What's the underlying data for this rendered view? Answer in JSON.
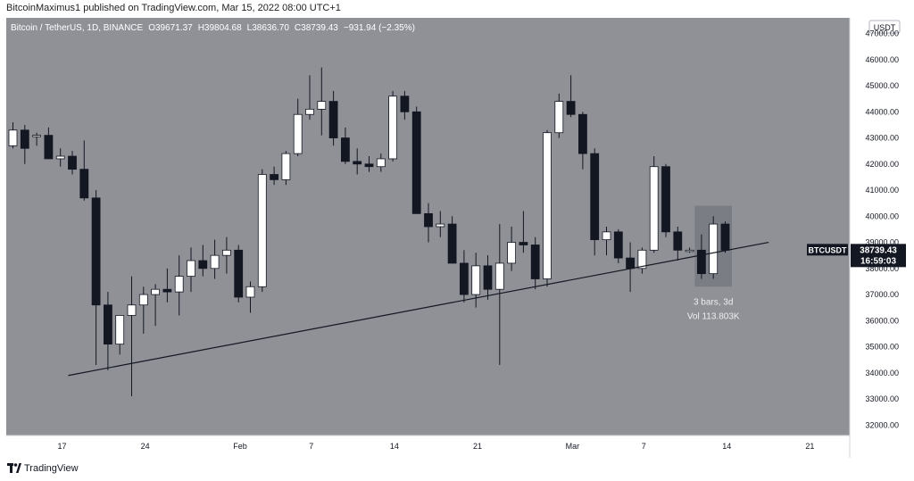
{
  "header": {
    "published": "BitcoinMaximus1 published on TradingView.com, Mar 15, 2022 08:00 UTC+1"
  },
  "footer": {
    "brand": "TradingView"
  },
  "colors": {
    "background": "#8f9197",
    "up_candle": "#ffffff",
    "down_candle": "#131722",
    "axis_panel": "#ffffff",
    "trendline": "#131722"
  },
  "chart_data": {
    "type": "candlestick",
    "symbol_title": "Bitcoin / TetherUS, 1D, BINANCE",
    "ohlc_readout": {
      "open": "O39671.37",
      "high": "H39804.68",
      "low": "L38636.70",
      "close": "C38739.43",
      "change": "−931.94 (−2.35%)"
    },
    "currency_label": "USDT",
    "price_label": {
      "symbol": "BTCUSDT",
      "price": "38739.43",
      "countdown": "16:59:03"
    },
    "measure_annotation": {
      "bars": "3 bars, 3d",
      "volume": "Vol 113.803K"
    },
    "y_ticks": [
      "47000.00",
      "46000.00",
      "45000.00",
      "44000.00",
      "43000.00",
      "42000.00",
      "41000.00",
      "40000.00",
      "39000.00",
      "38000.00",
      "37000.00",
      "36000.00",
      "35000.00",
      "34000.00",
      "33000.00",
      "32000.00"
    ],
    "x_ticks": [
      {
        "label": "17",
        "bar": 0
      },
      {
        "label": "24",
        "bar": 7
      },
      {
        "label": "Feb",
        "bar": 15
      },
      {
        "label": "7",
        "bar": 21
      },
      {
        "label": "14",
        "bar": 28
      },
      {
        "label": "21",
        "bar": 35
      },
      {
        "label": "Mar",
        "bar": 43
      },
      {
        "label": "7",
        "bar": 49
      },
      {
        "label": "14",
        "bar": 56
      },
      {
        "label": "21",
        "bar": 63
      }
    ],
    "ylim": [
      31600,
      47600
    ],
    "candles": [
      [
        42700,
        43600,
        42600,
        43300
      ],
      [
        43300,
        43500,
        42000,
        42600
      ],
      [
        43100,
        43200,
        42700,
        43100
      ],
      [
        43100,
        43400,
        42200,
        42200
      ],
      [
        42200,
        42600,
        41900,
        42300
      ],
      [
        42300,
        42500,
        41600,
        41800
      ],
      [
        41800,
        42900,
        40600,
        40700
      ],
      [
        40700,
        41000,
        34300,
        36600
      ],
      [
        36600,
        37100,
        34100,
        35100
      ],
      [
        35100,
        36200,
        34700,
        36200
      ],
      [
        36200,
        37700,
        33100,
        36600
      ],
      [
        36600,
        37300,
        35500,
        37000
      ],
      [
        37000,
        37400,
        35800,
        37200
      ],
      [
        37200,
        38000,
        36700,
        37100
      ],
      [
        37100,
        38500,
        36200,
        37700
      ],
      [
        37700,
        38800,
        37100,
        38300
      ],
      [
        38300,
        38900,
        37700,
        38000
      ],
      [
        38000,
        39100,
        37600,
        38500
      ],
      [
        38500,
        39200,
        37800,
        38700
      ],
      [
        38700,
        38900,
        36700,
        36900
      ],
      [
        36900,
        37500,
        36300,
        37300
      ],
      [
        37300,
        41800,
        37100,
        41600
      ],
      [
        41600,
        41900,
        41200,
        41400
      ],
      [
        41400,
        42500,
        41200,
        42400
      ],
      [
        42400,
        44500,
        42300,
        43900
      ],
      [
        43900,
        45400,
        43700,
        44100
      ],
      [
        44100,
        45700,
        43100,
        44400
      ],
      [
        44400,
        44800,
        42700,
        43000
      ],
      [
        43000,
        43400,
        42000,
        42100
      ],
      [
        42100,
        42600,
        41600,
        42000
      ],
      [
        42000,
        42300,
        41700,
        41900
      ],
      [
        41900,
        42400,
        41700,
        42200
      ],
      [
        42200,
        44800,
        42100,
        44600
      ],
      [
        44600,
        44800,
        43700,
        44000
      ],
      [
        44000,
        44200,
        40100,
        40100
      ],
      [
        40100,
        40500,
        39000,
        39600
      ],
      [
        39600,
        40200,
        39200,
        39700
      ],
      [
        39700,
        40000,
        38200,
        38200
      ],
      [
        38200,
        38700,
        36700,
        37000
      ],
      [
        37000,
        38600,
        36500,
        38100
      ],
      [
        38100,
        38500,
        36800,
        37200
      ],
      [
        37200,
        39700,
        34300,
        38200
      ],
      [
        38200,
        39600,
        37900,
        39000
      ],
      [
        39000,
        40200,
        38600,
        38900
      ],
      [
        38900,
        39200,
        37200,
        37600
      ],
      [
        37600,
        43300,
        37300,
        43200
      ],
      [
        43200,
        44700,
        43000,
        44400
      ],
      [
        44400,
        45400,
        43800,
        43900
      ],
      [
        43900,
        44000,
        41800,
        42400
      ],
      [
        42400,
        42600,
        38500,
        39100
      ],
      [
        39100,
        39600,
        38500,
        39400
      ],
      [
        39400,
        39500,
        38200,
        38400
      ],
      [
        38400,
        39000,
        37100,
        38000
      ],
      [
        38000,
        38800,
        37800,
        38700
      ],
      [
        38700,
        42300,
        38600,
        41900
      ],
      [
        41900,
        42000,
        39200,
        39400
      ],
      [
        39400,
        39600,
        38300,
        38700
      ],
      [
        38700,
        38800,
        38600,
        38700
      ],
      [
        38700,
        39300,
        37600,
        37800
      ],
      [
        37800,
        40000,
        37600,
        39700
      ],
      [
        39700,
        39800,
        38600,
        38700
      ]
    ],
    "trendline": [
      {
        "bar": 5,
        "price": 33900
      },
      {
        "bar": 64,
        "price": 39000
      }
    ]
  }
}
